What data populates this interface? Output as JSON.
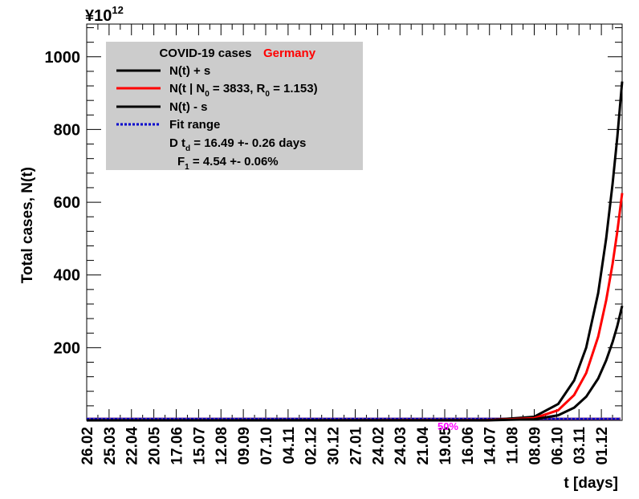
{
  "chart_data": {
    "type": "line",
    "title": "COVID-19 cases",
    "title_country": "Germany",
    "exponent_label": "¥10",
    "exponent_power": "12",
    "xlabel": "t [days]",
    "ylabel": "Total cases, N(t)",
    "ylim": [
      0,
      1090
    ],
    "yticks": [
      200,
      400,
      600,
      800,
      1000
    ],
    "x_tick_labels": [
      "26.02",
      "25.03",
      "22.04",
      "20.05",
      "17.06",
      "15.07",
      "12.08",
      "09.09",
      "07.10",
      "04.11",
      "02.12",
      "30.12",
      "27.01",
      "24.02",
      "24.03",
      "21.04",
      "19.05",
      "16.06",
      "14.07",
      "11.08",
      "08.09",
      "06.10",
      "03.11",
      "01.12"
    ],
    "x_tick_days": [
      0,
      28,
      56,
      84,
      112,
      140,
      168,
      196,
      224,
      252,
      280,
      308,
      336,
      364,
      392,
      420,
      448,
      476,
      504,
      532,
      560,
      588,
      616,
      644
    ],
    "xlim_days": [
      0,
      670
    ],
    "grid": false,
    "legend": {
      "position": "top-left",
      "entries": [
        {
          "label": "N(t) + s",
          "color": "#000000",
          "style": "solid"
        },
        {
          "label_main": "N(t | N",
          "label_sub0": "0",
          "label_mid": " = 3833, R",
          "label_sub1": "0",
          "label_end": " =  1.153)",
          "color": "#ff0000",
          "style": "solid"
        },
        {
          "label": "N(t) - s",
          "color": "#000000",
          "style": "solid"
        },
        {
          "label": "Fit range",
          "color": "#0000cc",
          "style": "dotted"
        }
      ],
      "stats": [
        {
          "pre": "D t",
          "sub": "d",
          "post": " = 16.49 +- 0.26 days"
        },
        {
          "pre": "F",
          "sub": "1",
          "post": " =  4.54 +- 0.06%"
        }
      ]
    },
    "annotations": [
      {
        "text": "50%",
        "x_day": 451,
        "color": "#ff00ff"
      }
    ],
    "series": [
      {
        "name": "N(t) + s",
        "color": "#000000",
        "x": [
          500,
          560,
          590,
          610,
          625,
          640,
          650,
          658,
          664,
          670
        ],
        "values": [
          0.3,
          10,
          45,
          110,
          200,
          350,
          500,
          650,
          780,
          932
        ]
      },
      {
        "name": "N(t | N0 = 3833, R0 = 1.153)",
        "color": "#ff0000",
        "x": [
          500,
          560,
          590,
          610,
          625,
          640,
          650,
          658,
          664,
          670
        ],
        "values": [
          0.2,
          6,
          28,
          70,
          130,
          230,
          330,
          430,
          520,
          625
        ]
      },
      {
        "name": "N(t) - s",
        "color": "#000000",
        "x": [
          500,
          560,
          590,
          610,
          625,
          640,
          650,
          658,
          664,
          670
        ],
        "values": [
          0.1,
          3,
          14,
          35,
          65,
          115,
          165,
          215,
          260,
          315
        ]
      }
    ],
    "colors": {
      "legend_bg": "#cccccc",
      "fit_range": "#0000cc",
      "baseline": "#6a3a9a"
    }
  }
}
